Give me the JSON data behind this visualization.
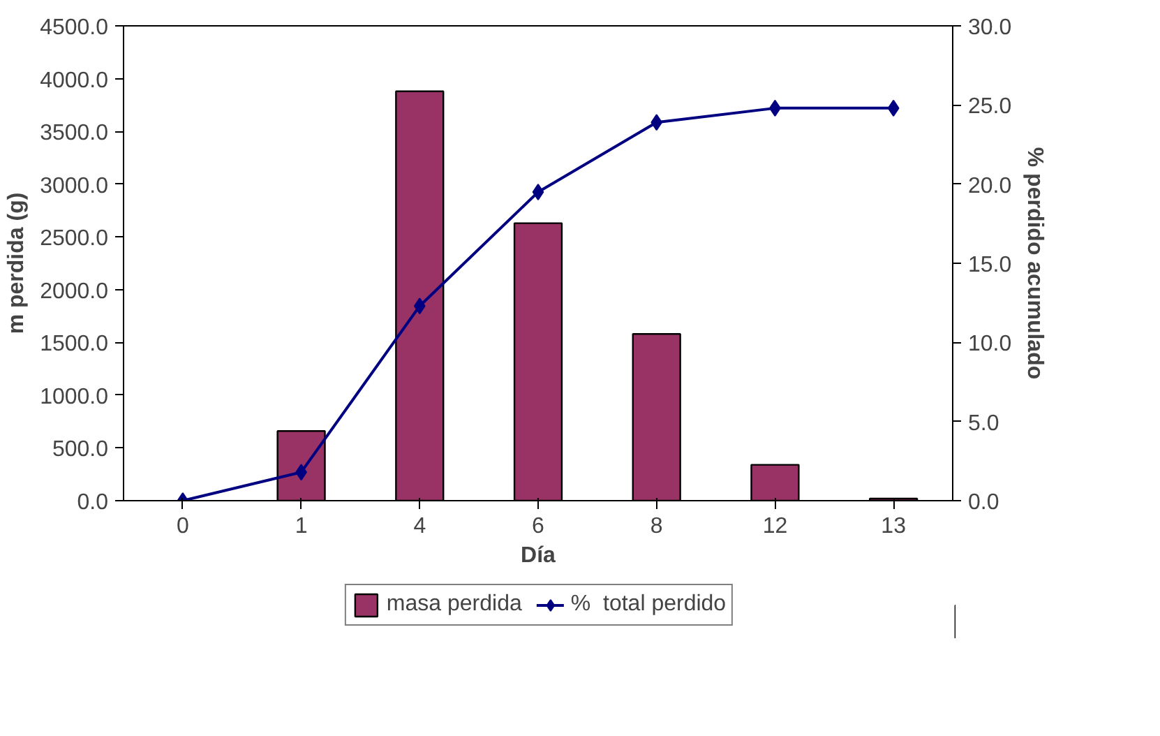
{
  "chart_data": {
    "type": "bar",
    "xlabel": "Día",
    "ylabel": "m perdida (g)",
    "y2label": "% perdido acumulado",
    "categories": [
      "0",
      "1",
      "4",
      "6",
      "8",
      "12",
      "13"
    ],
    "series": [
      {
        "name": "masa perdida",
        "color": "#993366",
        "values": [
          null,
          660,
          3880,
          2630,
          1580,
          340,
          20
        ]
      },
      {
        "name": "%  total perdido",
        "color": "#000080",
        "type": "line",
        "axis": "y2",
        "marker": "diamond",
        "values": [
          0,
          1.8,
          12.3,
          19.5,
          23.9,
          24.8,
          24.8
        ]
      }
    ],
    "ylim": [
      0,
      4500
    ],
    "yticks": [
      {
        "value": 0,
        "label": "0.0"
      },
      {
        "value": 500,
        "label": "500.0"
      },
      {
        "value": 1000,
        "label": "1000.0"
      },
      {
        "value": 1500,
        "label": "1500.0"
      },
      {
        "value": 2000,
        "label": "2000.0"
      },
      {
        "value": 2500,
        "label": "2500.0"
      },
      {
        "value": 3000,
        "label": "3000.0"
      },
      {
        "value": 3500,
        "label": "3500.0"
      },
      {
        "value": 4000,
        "label": "4000.0"
      },
      {
        "value": 4500,
        "label": "4500.0"
      }
    ],
    "y2lim": [
      0,
      30
    ],
    "y2ticks": [
      {
        "value": 0,
        "label": "0.0"
      },
      {
        "value": 5,
        "label": "5.0"
      },
      {
        "value": 10,
        "label": "10.0"
      },
      {
        "value": 15,
        "label": "15.0"
      },
      {
        "value": 20,
        "label": "20.0"
      },
      {
        "value": 25,
        "label": "25.0"
      },
      {
        "value": 30,
        "label": "30.0"
      }
    ],
    "grid": false,
    "legend": "bottom"
  }
}
